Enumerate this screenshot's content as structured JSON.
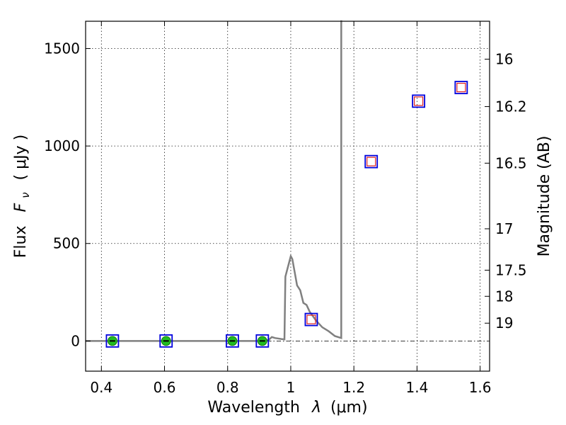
{
  "chart_data": {
    "type": "scatter",
    "xlabel_main": "Wavelength",
    "xlabel_symbol": "λ",
    "xlabel_unit": "(μm)",
    "ylabel_main": "Flux",
    "ylabel_symbol": "F",
    "ylabel_subscript": "ν",
    "ylabel_unit": "( μJy )",
    "y2label": "Magnitude (AB)",
    "xlim": [
      0.35,
      1.63
    ],
    "ylim": [
      -155,
      1640
    ],
    "x_ticks": [
      0.4,
      0.6,
      0.8,
      1.0,
      1.2,
      1.4,
      1.6
    ],
    "x_tick_labels": [
      "0.4",
      "0.6",
      "0.8",
      "1",
      "1.2",
      "1.4",
      "1.6"
    ],
    "y_ticks": [
      0,
      500,
      1000,
      1500
    ],
    "y_tick_labels": [
      "0",
      "500",
      "1000",
      "1500"
    ],
    "mag_ticks": [
      16,
      16.2,
      16.5,
      17,
      17.5,
      18,
      19
    ],
    "mag_tick_labels": [
      "16",
      "16.2",
      "16.5",
      "17",
      "17.5",
      "18",
      "19"
    ],
    "grid": true,
    "series": [
      {
        "kind": "line",
        "color": "#808080",
        "x": [
          0.35,
          0.43,
          0.6,
          0.81,
          0.9,
          0.93,
          0.94,
          0.95,
          0.97,
          0.98,
          0.983,
          1.0,
          1.005,
          1.02,
          1.03,
          1.04,
          1.05,
          1.06,
          1.08,
          1.1,
          1.12,
          1.14,
          1.16,
          1.16,
          1.163
        ],
        "y": [
          0,
          0,
          0,
          0,
          0,
          5,
          20,
          15,
          10,
          8,
          330,
          435,
          420,
          285,
          260,
          195,
          185,
          150,
          105,
          70,
          50,
          25,
          15,
          1640,
          1640
        ]
      },
      {
        "kind": "markers",
        "marker": "circle",
        "color": "#22bb22",
        "x": [
          0.435,
          0.605,
          0.815,
          0.91
        ],
        "y": [
          0,
          0,
          0,
          0
        ]
      },
      {
        "kind": "markers",
        "marker": "open-square",
        "color": "#0000dd",
        "x": [
          0.435,
          0.605,
          0.815,
          0.91,
          1.065,
          1.255,
          1.405,
          1.54
        ],
        "y": [
          0,
          0,
          0,
          0,
          110,
          920,
          1230,
          1300
        ]
      },
      {
        "kind": "markers",
        "marker": "small-open-square",
        "color": "#dd2222",
        "x": [
          1.065,
          1.255,
          1.405,
          1.54
        ],
        "y": [
          110,
          920,
          1230,
          1300
        ]
      }
    ]
  }
}
